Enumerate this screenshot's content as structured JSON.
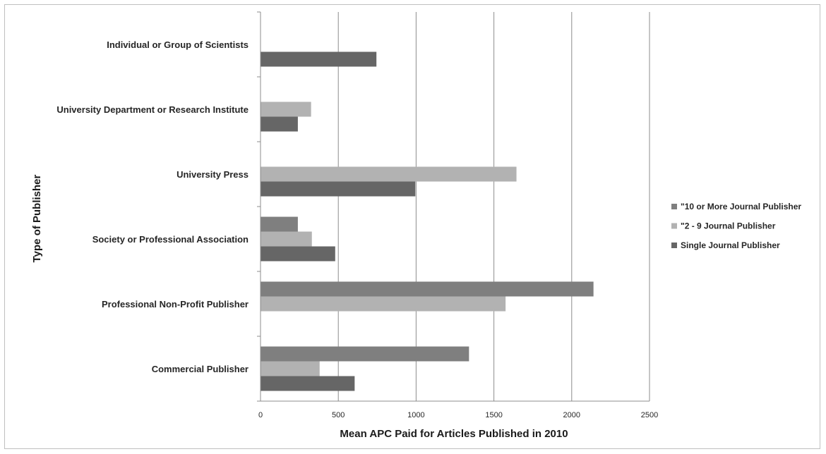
{
  "chart_data": {
    "type": "bar",
    "orientation": "horizontal",
    "title": "",
    "xlabel": "Mean APC Paid for Articles Published in 2010",
    "ylabel": "Type of Publisher",
    "xlim": [
      0,
      2500
    ],
    "xticks": [
      "0",
      "500",
      "1000",
      "1500",
      "2000",
      "2500"
    ],
    "grid": "vertical",
    "legend_position": "right",
    "categories": [
      "Individual or Group of Scientists",
      "University Department or Research Institute",
      "University Press",
      "Society or Professional Association",
      "Professional Non-Profit Publisher",
      "Commercial Publisher"
    ],
    "series": [
      {
        "name": "\"10 or More Journal Publisher",
        "color": "#7f7f7f",
        "values": [
          null,
          null,
          null,
          240,
          2140,
          1340
        ]
      },
      {
        "name": "\"2 - 9 Journal Publisher",
        "color": "#b2b2b2",
        "values": [
          null,
          325,
          1645,
          330,
          1575,
          380
        ]
      },
      {
        "name": "Single Journal Publisher",
        "color": "#666666",
        "values": [
          745,
          240,
          995,
          480,
          null,
          605
        ]
      }
    ]
  }
}
